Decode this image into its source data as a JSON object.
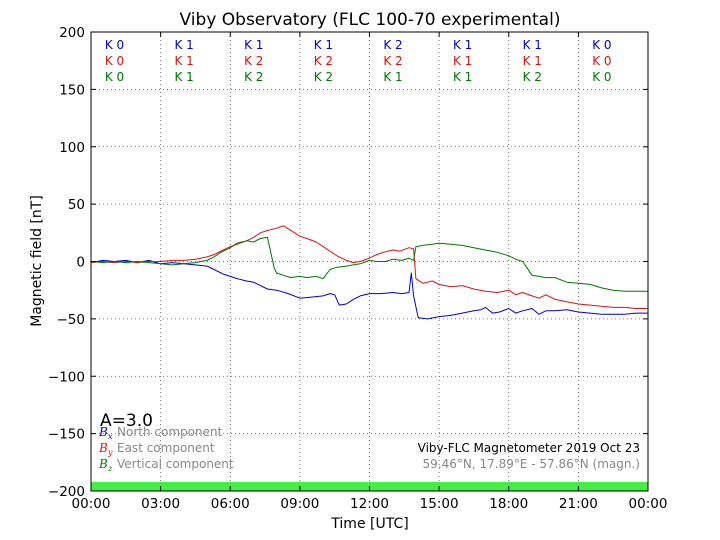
{
  "chart_data": {
    "type": "line",
    "title": "Viby Observatory (FLC 100-70 experimental)",
    "xlabel": "Time [UTC]",
    "ylabel": "Magnetic field [nT]",
    "xlim": [
      0,
      24
    ],
    "ylim": [
      -200,
      200
    ],
    "x_ticks": [
      0,
      3,
      6,
      9,
      12,
      15,
      18,
      21,
      24
    ],
    "x_tick_labels": [
      "00:00",
      "03:00",
      "06:00",
      "09:00",
      "12:00",
      "15:00",
      "18:00",
      "21:00",
      "00:00"
    ],
    "y_ticks": [
      -200,
      -150,
      -100,
      -50,
      0,
      50,
      100,
      150,
      200
    ],
    "y_tick_labels": [
      "−200",
      "−150",
      "−100",
      "−50",
      "0",
      "50",
      "100",
      "150",
      "200"
    ],
    "grid": true,
    "k_indices": {
      "north": [
        "K 0",
        "K 1",
        "K 1",
        "K 1",
        "K 2",
        "K 1",
        "K 1",
        "K 0"
      ],
      "east": [
        "K 0",
        "K 1",
        "K 2",
        "K 2",
        "K 2",
        "K 1",
        "K 1",
        "K 0"
      ],
      "vertical": [
        "K 0",
        "K 1",
        "K 2",
        "K 2",
        "K 1",
        "K 1",
        "K 2",
        "K 0"
      ]
    },
    "a_index": "A=3.0",
    "legend": [
      {
        "symbol": "B",
        "sub": "x",
        "label": "North component",
        "color": "#0000cc"
      },
      {
        "symbol": "B",
        "sub": "y",
        "label": "East component",
        "color": "#dd1111"
      },
      {
        "symbol": "B",
        "sub": "z",
        "label": "Vertical component",
        "color": "#007700"
      }
    ],
    "info_line1": "Viby-FLC Magnetometer 2019 Oct 23",
    "info_line2": "59.46°N, 17.89°E - 57.86°N (magn.)",
    "status_bar_color": "#44ee44",
    "series": [
      {
        "name": "North component",
        "color": "#0000cc",
        "x": [
          0,
          0.5,
          1,
          1.5,
          2,
          2.5,
          3,
          3.5,
          4,
          4.5,
          5,
          5.3,
          5.7,
          6,
          6.3,
          6.7,
          7,
          7.3,
          7.6,
          8,
          8.5,
          9,
          9.5,
          10,
          10.3,
          10.5,
          10.7,
          11,
          11.3,
          11.6,
          12,
          12.5,
          13,
          13.4,
          13.7,
          13.8,
          13.9,
          14.1,
          14.5,
          15,
          15.5,
          16,
          16.5,
          16.8,
          17,
          17.3,
          17.6,
          18,
          18.3,
          18.6,
          19,
          19.3,
          19.6,
          20,
          20.5,
          21,
          21.5,
          22,
          22.5,
          23,
          23.5,
          24
        ],
        "y": [
          -1,
          1,
          0,
          1,
          -1,
          1,
          -2,
          -1,
          -2,
          -3,
          -4,
          -7,
          -11,
          -13,
          -15,
          -17,
          -18,
          -21,
          -24,
          -25,
          -28,
          -32,
          -31,
          -30,
          -28,
          -29,
          -38,
          -37,
          -33,
          -30,
          -28,
          -28,
          -27,
          -28,
          -27,
          -10,
          -30,
          -49,
          -50,
          -48,
          -47,
          -45,
          -43,
          -42,
          -40,
          -45,
          -44,
          -41,
          -45,
          -43,
          -41,
          -46,
          -43,
          -43,
          -42,
          -44,
          -45,
          -46,
          -46,
          -46,
          -45,
          -45
        ]
      },
      {
        "name": "East component",
        "color": "#dd1111",
        "x": [
          0,
          0.5,
          1,
          1.5,
          2,
          2.5,
          3,
          3.5,
          4,
          4.5,
          5,
          5.3,
          5.7,
          6,
          6.3,
          6.7,
          7,
          7.3,
          7.6,
          8,
          8.3,
          8.7,
          9,
          9.3,
          9.7,
          10,
          10.3,
          10.6,
          11,
          11.3,
          11.6,
          12,
          12.3,
          12.6,
          13,
          13.3,
          13.7,
          13.9,
          14,
          14.3,
          14.7,
          15,
          15.5,
          16,
          16.5,
          17,
          17.5,
          18,
          18.3,
          18.6,
          19,
          19.3,
          19.6,
          20,
          20.5,
          21,
          21.5,
          22,
          22.5,
          23,
          23.5,
          24
        ],
        "y": [
          -1,
          0,
          -1,
          0,
          -1,
          0,
          0,
          1,
          1,
          2,
          4,
          6,
          10,
          13,
          15,
          18,
          21,
          25,
          27,
          29,
          31,
          26,
          22,
          20,
          17,
          13,
          9,
          5,
          1,
          -1,
          0,
          3,
          6,
          8,
          10,
          9,
          12,
          11,
          -15,
          -19,
          -17,
          -20,
          -22,
          -21,
          -24,
          -26,
          -27,
          -25,
          -29,
          -27,
          -30,
          -32,
          -29,
          -33,
          -35,
          -37,
          -38,
          -39,
          -40,
          -40,
          -41,
          -41
        ]
      },
      {
        "name": "Vertical component",
        "color": "#007700",
        "x": [
          0,
          0.5,
          1,
          1.5,
          2,
          2.5,
          3,
          3.5,
          4,
          4.5,
          5,
          5.3,
          5.6,
          6,
          6.3,
          6.7,
          7,
          7.3,
          7.6,
          7.9,
          8,
          8.3,
          8.6,
          9,
          9.3,
          9.7,
          10,
          10.3,
          10.6,
          11,
          11.3,
          11.6,
          12,
          12.3,
          12.7,
          13,
          13.4,
          13.7,
          13.9,
          14,
          14.3,
          14.7,
          15,
          15.5,
          16,
          16.5,
          17,
          17.5,
          18,
          18.3,
          18.6,
          19,
          19.3,
          19.6,
          20,
          20.5,
          21,
          21.5,
          22,
          22.5,
          23,
          23.5,
          24
        ],
        "y": [
          0,
          -1,
          0,
          -1,
          0,
          -1,
          -2,
          -3,
          -2,
          -1,
          1,
          4,
          8,
          12,
          16,
          18,
          17,
          20,
          21,
          -6,
          -10,
          -12,
          -14,
          -13,
          -14,
          -13,
          -15,
          -7,
          -5,
          -4,
          -3,
          -2,
          1,
          0,
          0,
          2,
          1,
          3,
          1,
          13,
          14,
          15,
          16,
          15,
          14,
          12,
          10,
          8,
          5,
          2,
          0,
          -12,
          -13,
          -14,
          -14,
          -18,
          -19,
          -20,
          -23,
          -25,
          -26,
          -26,
          -26
        ]
      }
    ]
  }
}
